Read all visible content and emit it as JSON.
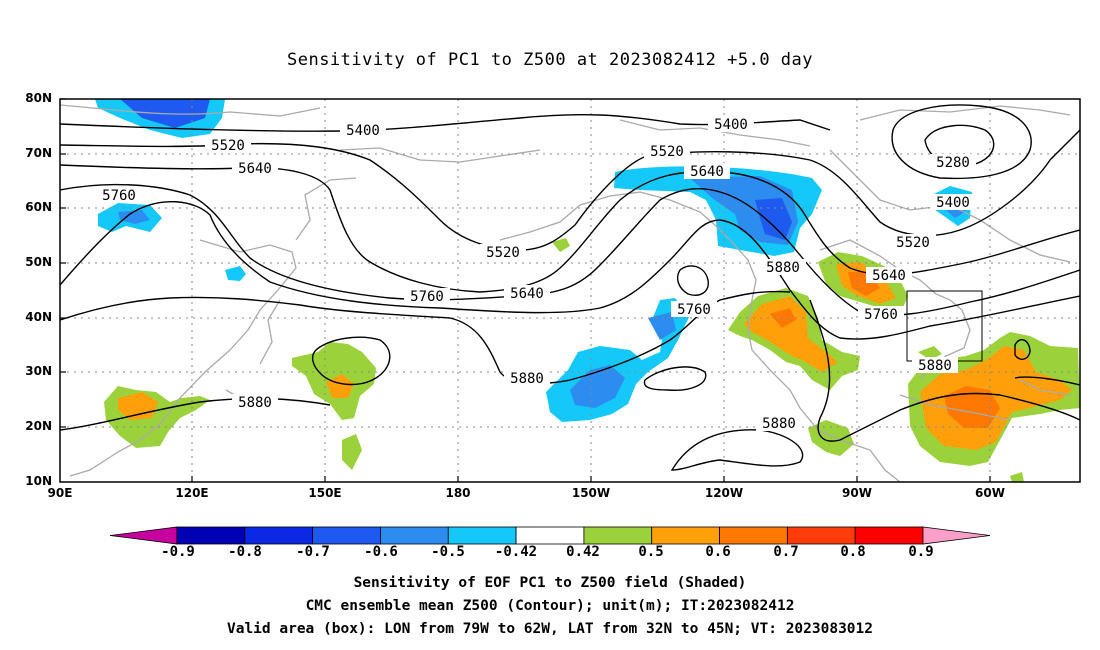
{
  "title": "Sensitivity of PC1 to Z500 at 2023082412 +5.0 day",
  "map": {
    "lat_labels": [
      "80N",
      "70N",
      "60N",
      "50N",
      "40N",
      "30N",
      "20N",
      "10N"
    ],
    "lon_labels": [
      "90E",
      "120E",
      "150E",
      "180",
      "150W",
      "120W",
      "90W",
      "60W"
    ],
    "contour_labels": [
      "5400",
      "5520",
      "5640",
      "5760",
      "5400",
      "5520",
      "5640",
      "5520",
      "5280",
      "5400",
      "5520",
      "5640",
      "5760",
      "5880",
      "5760",
      "5880",
      "5880",
      "5880",
      "5760",
      "5880"
    ],
    "colors": {
      "coastline": "#aaaaaa",
      "contour": "#000000",
      "grid": "#888888"
    }
  },
  "colorbar": {
    "labels": [
      "-0.9",
      "-0.8",
      "-0.7",
      "-0.6",
      "-0.5",
      "-0.42",
      "0.42",
      "0.5",
      "0.6",
      "0.7",
      "0.8",
      "0.9"
    ],
    "colors": [
      "#c8009e",
      "#0000b4",
      "#0a28e6",
      "#1e5af0",
      "#2d8cf0",
      "#14c8fa",
      "#ffffff",
      "#9bd23c",
      "#ffa00a",
      "#ff7800",
      "#ff3c0a",
      "#ff0000",
      "#ff9ec8"
    ]
  },
  "captions": [
    "Sensitivity of EOF PC1 to Z500 field (Shaded)",
    "CMC ensemble mean Z500 (Contour); unit(m); IT:2023082412",
    "Valid area (box): LON from 79W to 62W, LAT from 32N to 45N; VT: 2023083012"
  ]
}
